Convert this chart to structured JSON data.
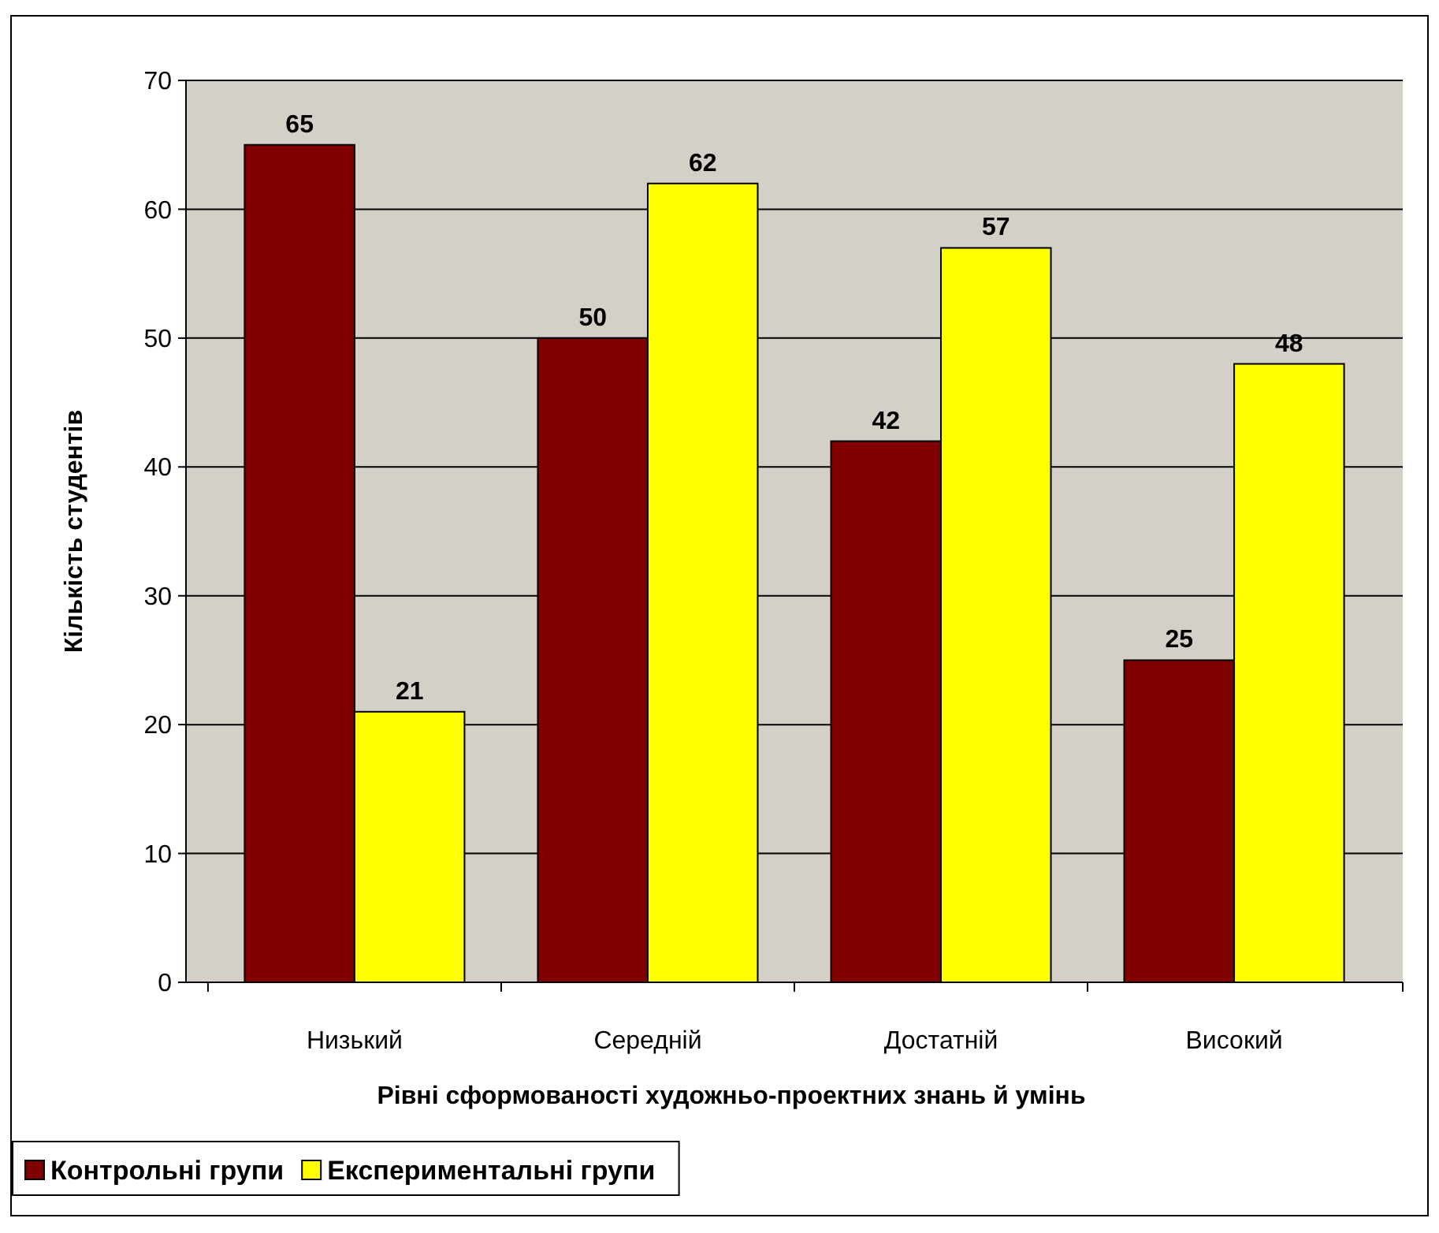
{
  "chart_data": {
    "type": "bar",
    "xlabel": "Рівні сформованості художньо-проектних знань й умінь",
    "ylabel": "Кількість студентiв",
    "categories": [
      "Низький",
      "Середній",
      "Достатній",
      "Високий"
    ],
    "series": [
      {
        "name": "Контрольні групи",
        "color": "#800000",
        "values": [
          65,
          50,
          42,
          25
        ]
      },
      {
        "name": "Експериментальні групи",
        "color": "#ffff00",
        "values": [
          21,
          62,
          57,
          48
        ]
      }
    ],
    "ylim": [
      0,
      70
    ],
    "yticks": [
      0,
      10,
      20,
      30,
      40,
      50,
      60,
      70
    ],
    "grid": "y",
    "legend": "bottom left",
    "data_labels": true
  }
}
